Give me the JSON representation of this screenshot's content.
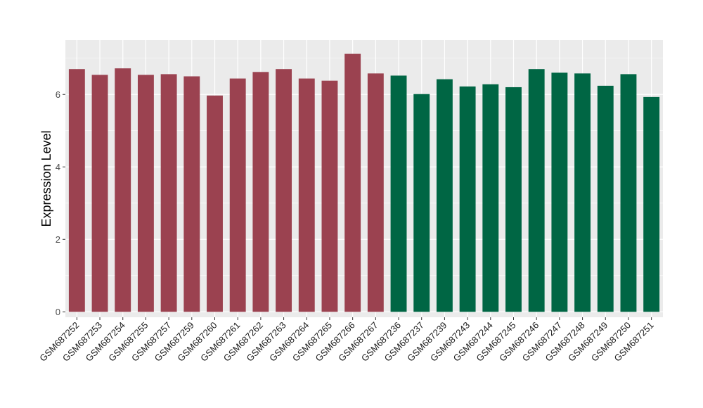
{
  "chart_data": {
    "type": "bar",
    "title": "",
    "xlabel": "",
    "ylabel": "Expression Level",
    "ylim": [
      -0.15,
      7.5
    ],
    "yticks": [
      0,
      2,
      4,
      6
    ],
    "grid": true,
    "legend": "none",
    "panel_color": "#EBEBEB",
    "categories": [
      "GSM687252",
      "GSM687253",
      "GSM687254",
      "GSM687255",
      "GSM687257",
      "GSM687259",
      "GSM687260",
      "GSM687261",
      "GSM687262",
      "GSM687263",
      "GSM687264",
      "GSM687265",
      "GSM687266",
      "GSM687267",
      "GSM687236",
      "GSM687237",
      "GSM687239",
      "GSM687243",
      "GSM687244",
      "GSM687245",
      "GSM687246",
      "GSM687247",
      "GSM687248",
      "GSM687249",
      "GSM687250",
      "GSM687251"
    ],
    "values": [
      6.7,
      6.54,
      6.72,
      6.54,
      6.56,
      6.5,
      5.97,
      6.44,
      6.62,
      6.7,
      6.44,
      6.38,
      7.12,
      6.58,
      6.52,
      6.01,
      6.42,
      6.22,
      6.28,
      6.2,
      6.7,
      6.6,
      6.58,
      6.24,
      6.56,
      5.93
    ],
    "groups": [
      0,
      0,
      0,
      0,
      0,
      0,
      0,
      0,
      0,
      0,
      0,
      0,
      0,
      0,
      1,
      1,
      1,
      1,
      1,
      1,
      1,
      1,
      1,
      1,
      1,
      1
    ],
    "group_colors": [
      "#9B4250",
      "#006644"
    ]
  }
}
